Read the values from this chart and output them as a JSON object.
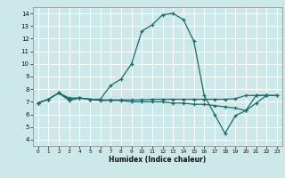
{
  "xlabel": "Humidex (Indice chaleur)",
  "bg_color": "#cce8e8",
  "grid_color": "#ffffff",
  "line_color": "#1a6b6b",
  "xlim": [
    -0.5,
    23.5
  ],
  "ylim": [
    3.5,
    14.5
  ],
  "xticks": [
    0,
    1,
    2,
    3,
    4,
    5,
    6,
    7,
    8,
    9,
    10,
    11,
    12,
    13,
    14,
    15,
    16,
    17,
    18,
    19,
    20,
    21,
    22,
    23
  ],
  "yticks": [
    4,
    5,
    6,
    7,
    8,
    9,
    10,
    11,
    12,
    13,
    14
  ],
  "series1_x": [
    0,
    1,
    2,
    3,
    4,
    5,
    6,
    7,
    8,
    9,
    10,
    11,
    12,
    13,
    14,
    15,
    16,
    17,
    18,
    19,
    20,
    21,
    22
  ],
  "series1_y": [
    6.9,
    7.2,
    7.7,
    7.1,
    7.3,
    7.2,
    7.2,
    8.3,
    8.8,
    10.0,
    12.6,
    13.1,
    13.9,
    14.0,
    13.5,
    11.8,
    7.5,
    6.0,
    4.5,
    5.9,
    6.3,
    7.5,
    7.5
  ],
  "series2_x": [
    0,
    1,
    2,
    3,
    4,
    5,
    6,
    7,
    8,
    9,
    10,
    11,
    12,
    13,
    14,
    15,
    16,
    17,
    18,
    19,
    20,
    21,
    22,
    23
  ],
  "series2_y": [
    6.9,
    7.2,
    7.7,
    7.2,
    7.3,
    7.2,
    7.15,
    7.15,
    7.15,
    7.15,
    7.15,
    7.2,
    7.2,
    7.2,
    7.2,
    7.2,
    7.2,
    7.2,
    7.2,
    7.25,
    7.5,
    7.5,
    7.5,
    7.5
  ],
  "series3_x": [
    0,
    1,
    2,
    3,
    4,
    5,
    6,
    7,
    8,
    9,
    10,
    11,
    12,
    13,
    14,
    15,
    16,
    17,
    18,
    19,
    20,
    21,
    22,
    23
  ],
  "series3_y": [
    6.9,
    7.2,
    7.7,
    7.3,
    7.3,
    7.2,
    7.1,
    7.1,
    7.1,
    7.0,
    7.0,
    7.0,
    7.0,
    6.9,
    6.9,
    6.8,
    6.8,
    6.7,
    6.6,
    6.5,
    6.3,
    6.9,
    7.5,
    7.5
  ]
}
